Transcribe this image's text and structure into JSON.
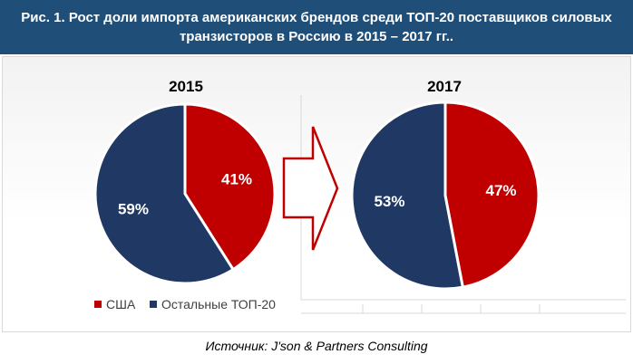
{
  "header": {
    "title_line1": "Рис. 1. Рост доли импорта американских брендов среди ТОП-20 поставщиков  силовых",
    "title_line2": "транзисторов в Россию в 2015 – 2017 гг.."
  },
  "chart_data": [
    {
      "type": "pie",
      "title": "2015",
      "slices": [
        {
          "label": "США",
          "value": 41,
          "display": "41%",
          "color": "#c00000"
        },
        {
          "label": "Остальные ТОП-20",
          "value": 59,
          "display": "59%",
          "color": "#1f3864"
        }
      ],
      "legend_position": "bottom"
    },
    {
      "type": "pie",
      "title": "2017",
      "slices": [
        {
          "label": "США",
          "value": 47,
          "display": "47%",
          "color": "#c00000"
        },
        {
          "label": "Остальные ТОП-20",
          "value": 53,
          "display": "53%",
          "color": "#1f3864"
        }
      ]
    }
  ],
  "legend": [
    {
      "label": "США",
      "color": "#c00000"
    },
    {
      "label": "Остальные ТОП-20",
      "color": "#1f3864"
    }
  ],
  "arrow_icon": "right-arrow-outline",
  "source": "Источник: J'son & Partners Consulting"
}
